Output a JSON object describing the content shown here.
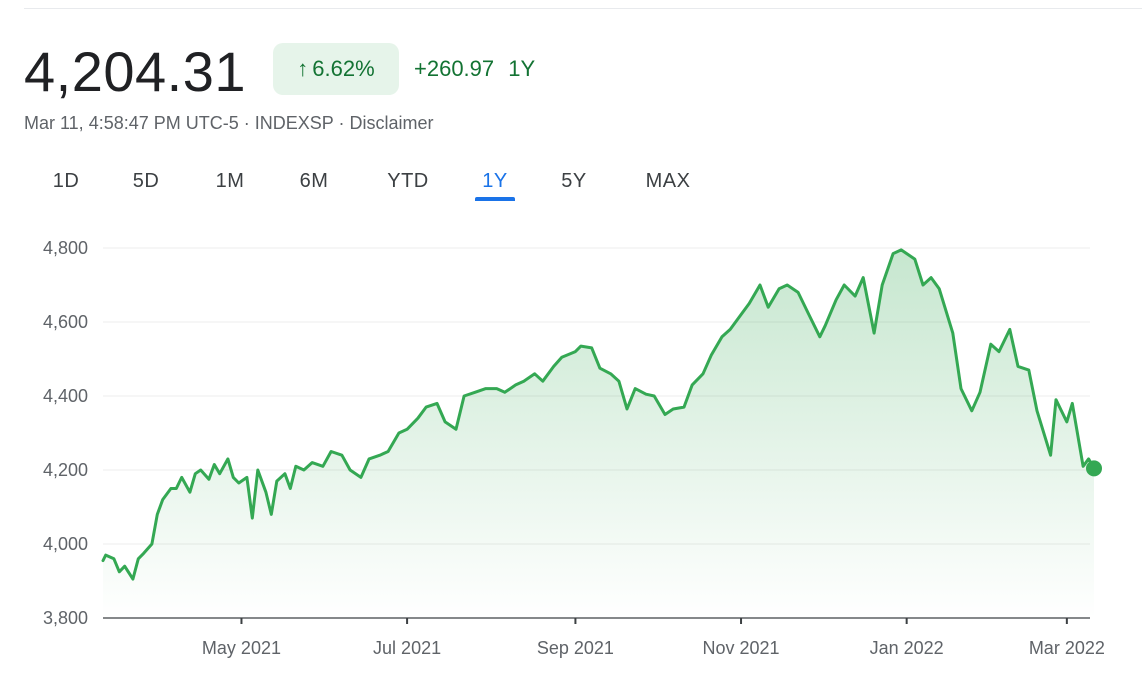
{
  "quote": {
    "price": "4,204.31",
    "change_pct": "6.62%",
    "change_abs": "+260.97",
    "range_label": "1Y",
    "date_time": "Mar 11, 4:58:47 PM UTC-5",
    "symbol": "INDEXSP",
    "disclaimer": "Disclaimer",
    "separator": "·",
    "up_color": "#137333",
    "chip_bg": "#e6f4ea"
  },
  "tabs": [
    {
      "label": "1D"
    },
    {
      "label": "5D"
    },
    {
      "label": "1M"
    },
    {
      "label": "6M"
    },
    {
      "label": "YTD"
    },
    {
      "label": "1Y",
      "active": true
    },
    {
      "label": "5Y"
    },
    {
      "label": "MAX"
    }
  ],
  "chart_data": {
    "type": "area",
    "title": "",
    "xlabel": "",
    "ylabel": "",
    "ylim": [
      3800,
      4800
    ],
    "yticks": [
      3800,
      4000,
      4200,
      4400,
      4600,
      4800
    ],
    "ytick_labels": [
      "3,800",
      "4,000",
      "4,200",
      "4,400",
      "4,600",
      "4,800"
    ],
    "xlim": [
      "2021-03-11",
      "2022-03-11"
    ],
    "xticks": [
      "2021-05-01",
      "2021-07-01",
      "2021-09-01",
      "2021-11-01",
      "2022-01-01",
      "2022-03-01"
    ],
    "xtick_labels": [
      "May 2021",
      "Jul 2021",
      "Sep 2021",
      "Nov 2021",
      "Jan 2022",
      "Mar 2022"
    ],
    "grid": true,
    "line_color": "#34a853",
    "series": [
      {
        "x": [
          "2021-03-11",
          "2021-03-12",
          "2021-03-15",
          "2021-03-17",
          "2021-03-19",
          "2021-03-22",
          "2021-03-24",
          "2021-03-26",
          "2021-03-29",
          "2021-03-31",
          "2021-04-02",
          "2021-04-05",
          "2021-04-07",
          "2021-04-09",
          "2021-04-12",
          "2021-04-14",
          "2021-04-16",
          "2021-04-19",
          "2021-04-21",
          "2021-04-23",
          "2021-04-26",
          "2021-04-28",
          "2021-04-30",
          "2021-05-03",
          "2021-05-05",
          "2021-05-07",
          "2021-05-10",
          "2021-05-12",
          "2021-05-14",
          "2021-05-17",
          "2021-05-19",
          "2021-05-21",
          "2021-05-24",
          "2021-05-27",
          "2021-05-31",
          "2021-06-03",
          "2021-06-07",
          "2021-06-10",
          "2021-06-14",
          "2021-06-17",
          "2021-06-21",
          "2021-06-24",
          "2021-06-28",
          "2021-07-01",
          "2021-07-05",
          "2021-07-08",
          "2021-07-12",
          "2021-07-15",
          "2021-07-19",
          "2021-07-22",
          "2021-07-26",
          "2021-07-30",
          "2021-08-03",
          "2021-08-06",
          "2021-08-10",
          "2021-08-13",
          "2021-08-17",
          "2021-08-20",
          "2021-08-24",
          "2021-08-27",
          "2021-09-01",
          "2021-09-03",
          "2021-09-07",
          "2021-09-10",
          "2021-09-14",
          "2021-09-17",
          "2021-09-20",
          "2021-09-23",
          "2021-09-27",
          "2021-09-30",
          "2021-10-04",
          "2021-10-07",
          "2021-10-11",
          "2021-10-14",
          "2021-10-18",
          "2021-10-21",
          "2021-10-25",
          "2021-10-28",
          "2021-11-01",
          "2021-11-04",
          "2021-11-08",
          "2021-11-11",
          "2021-11-15",
          "2021-11-18",
          "2021-11-22",
          "2021-11-26",
          "2021-11-30",
          "2021-12-02",
          "2021-12-06",
          "2021-12-09",
          "2021-12-13",
          "2021-12-16",
          "2021-12-20",
          "2021-12-23",
          "2021-12-27",
          "2021-12-30",
          "2022-01-04",
          "2022-01-07",
          "2022-01-10",
          "2022-01-13",
          "2022-01-18",
          "2022-01-21",
          "2022-01-25",
          "2022-01-28",
          "2022-02-01",
          "2022-02-04",
          "2022-02-08",
          "2022-02-11",
          "2022-02-15",
          "2022-02-18",
          "2022-02-23",
          "2022-02-25",
          "2022-03-01",
          "2022-03-03",
          "2022-03-07",
          "2022-03-09",
          "2022-03-11"
        ],
        "y": [
          3955,
          3970,
          3960,
          3925,
          3940,
          3905,
          3960,
          3975,
          4000,
          4080,
          4120,
          4150,
          4150,
          4180,
          4140,
          4190,
          4200,
          4175,
          4215,
          4190,
          4230,
          4180,
          4165,
          4180,
          4070,
          4200,
          4140,
          4080,
          4170,
          4190,
          4150,
          4210,
          4200,
          4220,
          4210,
          4250,
          4240,
          4200,
          4180,
          4230,
          4240,
          4250,
          4300,
          4310,
          4340,
          4370,
          4380,
          4330,
          4310,
          4400,
          4410,
          4420,
          4420,
          4410,
          4430,
          4440,
          4460,
          4440,
          4480,
          4505,
          4520,
          4535,
          4530,
          4475,
          4460,
          4440,
          4365,
          4420,
          4405,
          4400,
          4350,
          4365,
          4370,
          4430,
          4460,
          4510,
          4560,
          4580,
          4620,
          4650,
          4700,
          4640,
          4690,
          4700,
          4680,
          4620,
          4560,
          4590,
          4660,
          4700,
          4670,
          4720,
          4570,
          4700,
          4785,
          4795,
          4770,
          4700,
          4720,
          4690,
          4570,
          4420,
          4360,
          4410,
          4540,
          4520,
          4580,
          4480,
          4470,
          4360,
          4240,
          4390,
          4330,
          4380,
          4210,
          4230,
          4204
        ]
      }
    ],
    "last_value": 4204.31
  }
}
